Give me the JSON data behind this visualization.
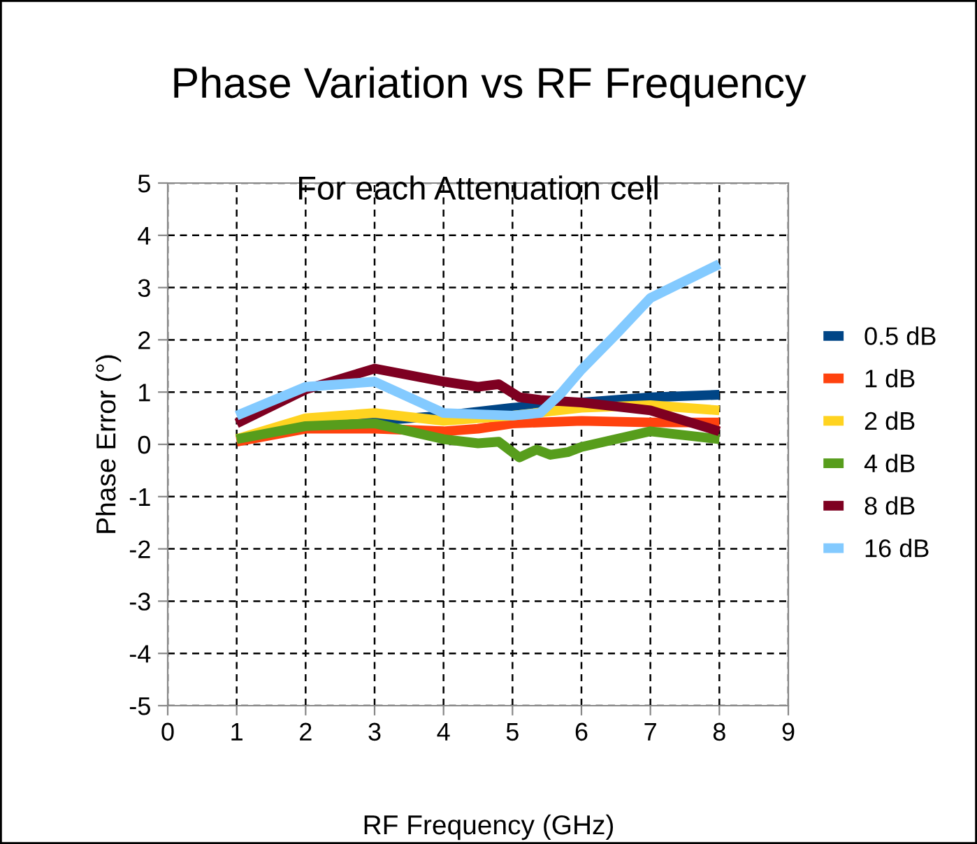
{
  "chart_data": {
    "type": "line",
    "title": "Phase Variation vs RF Frequency",
    "subtitle": "For each Attenuation cell",
    "xlabel": "RF Frequency (GHz)",
    "ylabel": "Phase Error (°)",
    "xlim": [
      0,
      9
    ],
    "xticks": [
      0,
      1,
      2,
      3,
      4,
      5,
      6,
      7,
      8,
      9
    ],
    "ylim": [
      -5,
      5
    ],
    "yticks": [
      -5,
      -4,
      -3,
      -2,
      -1,
      0,
      1,
      2,
      3,
      4,
      5
    ],
    "grid": true,
    "legend": "right",
    "marker": "none",
    "line_style": "solid",
    "series": [
      {
        "name": "0.5 dB",
        "color": "#004586",
        "x": [
          1,
          2,
          3,
          4,
          5,
          6,
          7,
          8
        ],
        "values": [
          0.1,
          0.35,
          0.45,
          0.55,
          0.7,
          0.8,
          0.9,
          0.95
        ]
      },
      {
        "name": "1 dB",
        "color": "#ff420e",
        "x": [
          1,
          2,
          3,
          4,
          4.5,
          5,
          6,
          7,
          8
        ],
        "values": [
          0.05,
          0.3,
          0.3,
          0.25,
          0.3,
          0.4,
          0.45,
          0.42,
          0.42
        ]
      },
      {
        "name": "2 dB",
        "color": "#ffd320",
        "x": [
          1,
          2,
          3,
          4,
          5,
          6,
          7,
          8
        ],
        "values": [
          0.1,
          0.5,
          0.6,
          0.45,
          0.55,
          0.7,
          0.75,
          0.65
        ]
      },
      {
        "name": "4 dB",
        "color": "#579d1c",
        "x": [
          1,
          2,
          3,
          4,
          4.5,
          4.8,
          5.1,
          5.35,
          5.55,
          5.8,
          6,
          7,
          8
        ],
        "values": [
          0.1,
          0.35,
          0.4,
          0.1,
          0.02,
          0.05,
          -0.25,
          -0.1,
          -0.2,
          -0.15,
          -0.05,
          0.25,
          0.1
        ]
      },
      {
        "name": "8 dB",
        "color": "#7e0021",
        "x": [
          1,
          2,
          3,
          4,
          4.5,
          4.8,
          5.1,
          5.4,
          6,
          7,
          8
        ],
        "values": [
          0.4,
          1.05,
          1.45,
          1.2,
          1.1,
          1.15,
          0.9,
          0.85,
          0.8,
          0.65,
          0.25
        ]
      },
      {
        "name": "16 dB",
        "color": "#83caff",
        "x": [
          1,
          2,
          3,
          4,
          5,
          5.4,
          5.7,
          6,
          6.5,
          7,
          8
        ],
        "values": [
          0.55,
          1.1,
          1.2,
          0.6,
          0.55,
          0.6,
          0.97,
          1.43,
          2.1,
          2.8,
          3.45
        ]
      }
    ]
  }
}
